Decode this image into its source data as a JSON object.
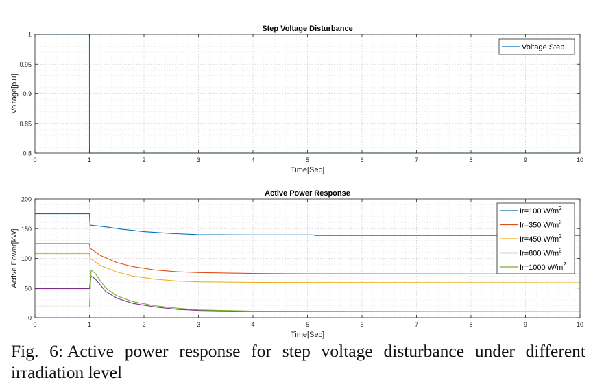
{
  "chart_data": [
    {
      "type": "line",
      "title": "Step Voltage Disturbance",
      "xlabel": "Time[Sec]",
      "ylabel": "Voltage[p.u]",
      "xlim": [
        0,
        10
      ],
      "ylim": [
        0.8,
        1
      ],
      "xticks": [
        "0",
        "1",
        "2",
        "3",
        "4",
        "5",
        "6",
        "7",
        "8",
        "9",
        "10"
      ],
      "yticks": [
        "0.8",
        "0.85",
        "0.9",
        "0.95",
        "1"
      ],
      "grid": true,
      "legend_position": "top-right",
      "series": [
        {
          "name": "Voltage Step",
          "color": "#0072BD",
          "points": [
            [
              0,
              1
            ],
            [
              1,
              1
            ],
            [
              1,
              0.8
            ],
            [
              10,
              0.8
            ]
          ]
        }
      ]
    },
    {
      "type": "line",
      "title": "Active Power Response",
      "xlabel": "Time[Sec]",
      "ylabel": "Active Power[kW]",
      "xlim": [
        0,
        10
      ],
      "ylim": [
        0,
        200
      ],
      "xticks": [
        "0",
        "1",
        "2",
        "3",
        "4",
        "5",
        "6",
        "7",
        "8",
        "9",
        "10"
      ],
      "yticks": [
        "0",
        "50",
        "100",
        "150",
        "200"
      ],
      "grid": true,
      "legend_position": "top-right",
      "series": [
        {
          "name": "Ir=100 W/m",
          "sup": "2",
          "color": "#0072BD",
          "points": [
            [
              0,
              175
            ],
            [
              1,
              175
            ],
            [
              1.01,
              156
            ],
            [
              1.3,
              153
            ],
            [
              1.6,
              149
            ],
            [
              2,
              145
            ],
            [
              2.5,
              142
            ],
            [
              3,
              140
            ],
            [
              4,
              139.5
            ],
            [
              5.1,
              139.5
            ],
            [
              5.15,
              138.5
            ],
            [
              10,
              138.5
            ]
          ]
        },
        {
          "name": "Ir=350 W/m",
          "sup": "2",
          "color": "#D95319",
          "points": [
            [
              0,
              125
            ],
            [
              1,
              125
            ],
            [
              1.01,
              117
            ],
            [
              1.2,
              105
            ],
            [
              1.5,
              93
            ],
            [
              1.8,
              86
            ],
            [
              2.2,
              80.5
            ],
            [
              2.6,
              77.5
            ],
            [
              3,
              76
            ],
            [
              4,
              74.5
            ],
            [
              5,
              74
            ],
            [
              10,
              73.5
            ]
          ]
        },
        {
          "name": "Ir=450 W/m",
          "sup": "2",
          "color": "#EDB120",
          "points": [
            [
              0,
              108
            ],
            [
              1,
              108
            ],
            [
              1.01,
              100
            ],
            [
              1.2,
              88
            ],
            [
              1.5,
              77
            ],
            [
              1.8,
              70
            ],
            [
              2.2,
              65
            ],
            [
              2.6,
              62
            ],
            [
              3,
              60.5
            ],
            [
              4,
              59.5
            ],
            [
              10,
              59
            ]
          ]
        },
        {
          "name": "Ir=800 W/m",
          "sup": "2",
          "color": "#7E2F8E",
          "points": [
            [
              0,
              49
            ],
            [
              1,
              49
            ],
            [
              1.03,
              70
            ],
            [
              1.1,
              66
            ],
            [
              1.2,
              55
            ],
            [
              1.3,
              44
            ],
            [
              1.5,
              33
            ],
            [
              1.8,
              24
            ],
            [
              2.2,
              18
            ],
            [
              2.6,
              14
            ],
            [
              3,
              12
            ],
            [
              4,
              10.5
            ],
            [
              10,
              10
            ]
          ]
        },
        {
          "name": "Ir=1000 W/m",
          "sup": "2",
          "color": "#77AC30",
          "points": [
            [
              0,
              18
            ],
            [
              1,
              18
            ],
            [
              1.03,
              80
            ],
            [
              1.1,
              75
            ],
            [
              1.2,
              62
            ],
            [
              1.3,
              50
            ],
            [
              1.5,
              37
            ],
            [
              1.8,
              27
            ],
            [
              2.2,
              20
            ],
            [
              2.6,
              16
            ],
            [
              3,
              13
            ],
            [
              4,
              11
            ],
            [
              10,
              10
            ]
          ]
        }
      ]
    }
  ],
  "caption": {
    "label": "Fig. 6:",
    "text": "Active power response for step voltage disturbance under different irradiation level"
  }
}
